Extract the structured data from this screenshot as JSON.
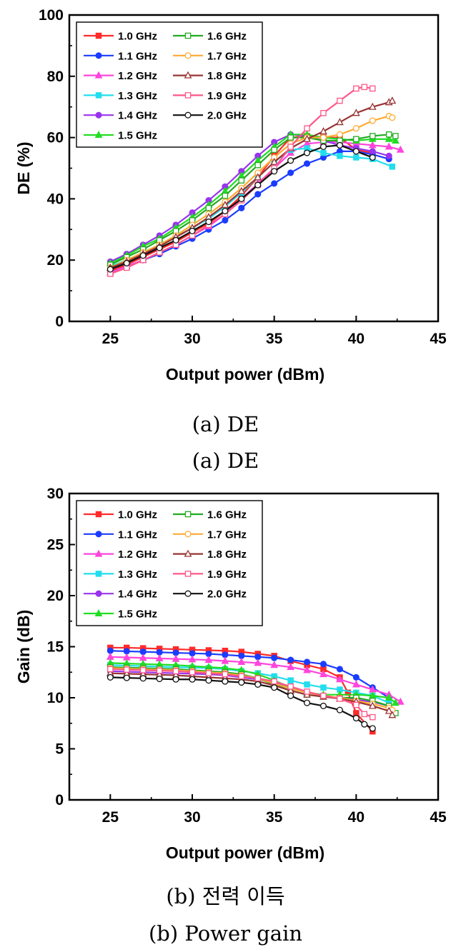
{
  "captions": {
    "a_primary": "(a)  DE",
    "a_secondary": "(a)  DE",
    "b_primary": "(b)  전력 이득",
    "b_secondary": "(b)  Power gain"
  },
  "chart_data": [
    {
      "type": "line",
      "xlabel": "Output power (dBm)",
      "ylabel": "DE (%)",
      "xlim": [
        22.5,
        45
      ],
      "ylim": [
        0,
        100
      ],
      "xticks": [
        25,
        30,
        35,
        40,
        45
      ],
      "yticks": [
        0,
        20,
        40,
        60,
        80,
        100
      ],
      "grid": false,
      "legend_position": "top-left",
      "series": [
        {
          "name": "1.0 GHz",
          "color": "#ff2a2a",
          "marker": "square",
          "filled": true,
          "x": [
            25,
            26,
            27,
            28,
            29,
            30,
            31,
            32,
            33,
            34,
            35,
            36,
            37,
            38,
            39,
            40,
            41
          ],
          "y": [
            16.5,
            18.5,
            21,
            23.5,
            26,
            29,
            32,
            36,
            41,
            47,
            54,
            60,
            60.5,
            60,
            60,
            56,
            55
          ]
        },
        {
          "name": "1.1 GHz",
          "color": "#1a3cff",
          "marker": "circle",
          "filled": true,
          "x": [
            25,
            26,
            27,
            28,
            29,
            30,
            31,
            32,
            33,
            34,
            35,
            36,
            37,
            38,
            39,
            40,
            41,
            42
          ],
          "y": [
            16,
            18,
            20,
            22,
            24.5,
            27,
            30,
            33,
            37,
            41.5,
            45,
            48.5,
            51.5,
            53.5,
            55.5,
            55.5,
            54.5,
            53
          ]
        },
        {
          "name": "1.2 GHz",
          "color": "#ff44dd",
          "marker": "triangle",
          "filled": true,
          "x": [
            25,
            26,
            27,
            28,
            29,
            30,
            31,
            32,
            33,
            34,
            35,
            36,
            37,
            38,
            39,
            40,
            41,
            42,
            42.7
          ],
          "y": [
            16,
            18,
            20,
            22.5,
            25,
            28,
            31,
            35,
            40,
            45,
            50,
            55,
            58,
            58.5,
            58.5,
            58,
            57.5,
            57,
            56
          ]
        },
        {
          "name": "1.3 GHz",
          "color": "#22ddee",
          "marker": "square",
          "filled": true,
          "x": [
            25,
            26,
            27,
            28,
            29,
            30,
            31,
            32,
            33,
            34,
            35,
            36,
            37,
            38,
            39,
            40,
            41,
            42.2
          ],
          "y": [
            18,
            20,
            22.5,
            25,
            27.5,
            30.5,
            33.5,
            37.5,
            42,
            47,
            52,
            56,
            56.5,
            55,
            54,
            53.5,
            53,
            50.5
          ]
        },
        {
          "name": "1.4 GHz",
          "color": "#9933ee",
          "marker": "circle",
          "filled": true,
          "x": [
            25,
            26,
            27,
            28,
            29,
            30,
            31,
            32,
            33,
            34,
            35,
            36,
            37,
            38,
            39,
            40,
            41,
            42
          ],
          "y": [
            19.5,
            22,
            25,
            28,
            31.5,
            35.5,
            39.5,
            44,
            49,
            54,
            58.5,
            61,
            60.5,
            59,
            57.5,
            56.5,
            55.5,
            54
          ]
        },
        {
          "name": "1.5 GHz",
          "color": "#22dd22",
          "marker": "triangle",
          "filled": true,
          "x": [
            25,
            26,
            27,
            28,
            29,
            30,
            31,
            32,
            33,
            34,
            35,
            36,
            37,
            38,
            39,
            40,
            41,
            42,
            42.4
          ],
          "y": [
            19,
            21.5,
            24.5,
            27,
            30.5,
            34,
            38,
            42.5,
            47.5,
            52.5,
            57,
            61,
            61,
            60,
            59.5,
            59,
            59.5,
            59.5,
            59
          ]
        },
        {
          "name": "1.6 GHz",
          "color": "#22aa22",
          "marker": "square",
          "filled": false,
          "x": [
            25,
            26,
            27,
            28,
            29,
            30,
            31,
            32,
            33,
            34,
            35,
            36,
            37,
            38,
            39,
            40,
            41,
            42,
            42.4
          ],
          "y": [
            18.5,
            21,
            23.5,
            26.5,
            29.5,
            33,
            37,
            41,
            46,
            51,
            56,
            60,
            60,
            59,
            59,
            59.5,
            60.5,
            61,
            60.5
          ]
        },
        {
          "name": "1.7 GHz",
          "color": "#ffaa33",
          "marker": "circle",
          "filled": false,
          "x": [
            25,
            26,
            27,
            28,
            29,
            30,
            31,
            32,
            33,
            34,
            35,
            36,
            37,
            38,
            39,
            40,
            41,
            42,
            42.2
          ],
          "y": [
            17.5,
            20,
            22.5,
            25,
            28,
            31.5,
            35,
            39,
            43.5,
            48.5,
            53.5,
            58,
            60,
            60,
            61,
            63,
            65.5,
            67,
            66.5
          ]
        },
        {
          "name": "1.8 GHz",
          "color": "#993333",
          "marker": "triangle",
          "filled": false,
          "x": [
            25,
            26,
            27,
            28,
            29,
            30,
            31,
            32,
            33,
            34,
            35,
            36,
            37,
            38,
            39,
            40,
            41,
            42,
            42.2
          ],
          "y": [
            17.5,
            19.5,
            22,
            24.5,
            27.5,
            30.5,
            34,
            38,
            42.5,
            47,
            52,
            56.5,
            59.5,
            62,
            65,
            68,
            70,
            71.5,
            72
          ]
        },
        {
          "name": "1.9 GHz",
          "color": "#ff5588",
          "marker": "square",
          "filled": false,
          "x": [
            25,
            26,
            27,
            28,
            29,
            30,
            31,
            32,
            33,
            34,
            35,
            36,
            37,
            38,
            39,
            40,
            40.5,
            41
          ],
          "y": [
            15.5,
            17.5,
            20,
            22.5,
            25,
            28,
            31.5,
            35,
            39.5,
            44.5,
            50,
            57,
            63,
            68,
            72,
            76,
            76.5,
            76
          ]
        },
        {
          "name": "2.0 GHz",
          "color": "#111111",
          "marker": "circle",
          "filled": false,
          "x": [
            25,
            26,
            27,
            28,
            29,
            30,
            31,
            32,
            33,
            34,
            35,
            36,
            37,
            38,
            39,
            40,
            41
          ],
          "y": [
            17,
            19,
            21.5,
            24,
            26.5,
            29.5,
            32.5,
            36,
            40,
            44.5,
            49,
            52.5,
            55,
            57,
            57.5,
            55.5,
            53.5
          ]
        }
      ]
    },
    {
      "type": "line",
      "xlabel": "Output power (dBm)",
      "ylabel": "Gain (dB)",
      "xlim": [
        22.5,
        45
      ],
      "ylim": [
        0,
        30
      ],
      "xticks": [
        25,
        30,
        35,
        40,
        45
      ],
      "yticks": [
        0,
        5,
        10,
        15,
        20,
        25,
        30
      ],
      "grid": false,
      "legend_position": "top-left",
      "series": [
        {
          "name": "1.0 GHz",
          "color": "#ff2a2a",
          "marker": "square",
          "filled": true,
          "x": [
            25,
            26,
            27,
            28,
            29,
            30,
            31,
            32,
            33,
            34,
            35,
            36,
            37,
            38,
            39,
            39.5,
            40,
            41
          ],
          "y": [
            14.9,
            14.9,
            14.85,
            14.8,
            14.75,
            14.7,
            14.65,
            14.6,
            14.5,
            14.3,
            14.1,
            13.6,
            13.2,
            12.8,
            12,
            10.5,
            8.5,
            6.7
          ]
        },
        {
          "name": "1.1 GHz",
          "color": "#1a3cff",
          "marker": "circle",
          "filled": true,
          "x": [
            25,
            26,
            27,
            28,
            29,
            30,
            31,
            32,
            33,
            34,
            35,
            36,
            37,
            38,
            39,
            40,
            41,
            42
          ],
          "y": [
            14.6,
            14.55,
            14.5,
            14.45,
            14.4,
            14.35,
            14.3,
            14.2,
            14.1,
            14,
            13.9,
            13.7,
            13.5,
            13.3,
            12.8,
            12,
            11,
            10
          ]
        },
        {
          "name": "1.2 GHz",
          "color": "#ff44dd",
          "marker": "triangle",
          "filled": true,
          "x": [
            25,
            26,
            27,
            28,
            29,
            30,
            31,
            32,
            33,
            34,
            35,
            36,
            37,
            38,
            39,
            40,
            41,
            42,
            42.7
          ],
          "y": [
            14,
            13.95,
            13.9,
            13.85,
            13.8,
            13.75,
            13.7,
            13.6,
            13.5,
            13.4,
            13.2,
            13,
            12.7,
            12.3,
            11.8,
            11.3,
            10.8,
            10.3,
            9.6
          ]
        },
        {
          "name": "1.3 GHz",
          "color": "#22ddee",
          "marker": "square",
          "filled": true,
          "x": [
            25,
            26,
            27,
            28,
            29,
            30,
            31,
            32,
            33,
            34,
            35,
            36,
            37,
            38,
            39,
            40,
            41,
            42
          ],
          "y": [
            13.2,
            13.15,
            13.1,
            13.05,
            13,
            12.95,
            12.9,
            12.8,
            12.6,
            12.4,
            12.1,
            11.7,
            11.3,
            11,
            10.8,
            10.5,
            10.2,
            9.5
          ]
        },
        {
          "name": "1.4 GHz",
          "color": "#9933ee",
          "marker": "circle",
          "filled": true,
          "x": [
            25,
            26,
            27,
            28,
            29,
            30,
            31,
            32,
            33,
            34,
            35,
            36,
            37,
            38,
            39,
            40,
            41,
            42
          ],
          "y": [
            12.6,
            12.55,
            12.5,
            12.45,
            12.4,
            12.35,
            12.3,
            12.2,
            12,
            11.8,
            11.5,
            11,
            10.5,
            10.2,
            10,
            9.8,
            9.6,
            9.2
          ]
        },
        {
          "name": "1.5 GHz",
          "color": "#22dd22",
          "marker": "triangle",
          "filled": true,
          "x": [
            25,
            26,
            27,
            28,
            29,
            30,
            31,
            32,
            33,
            34,
            35,
            36,
            37,
            38,
            39,
            40,
            41,
            42,
            42.4
          ],
          "y": [
            13.4,
            13.35,
            13.3,
            13.25,
            13.2,
            13.1,
            13,
            12.9,
            12.7,
            12.3,
            11.7,
            11,
            10.5,
            10.3,
            10.3,
            10.3,
            10.2,
            10,
            9.5
          ]
        },
        {
          "name": "1.6 GHz",
          "color": "#22aa22",
          "marker": "square",
          "filled": false,
          "x": [
            25,
            26,
            27,
            28,
            29,
            30,
            31,
            32,
            33,
            34,
            35,
            36,
            37,
            38,
            39,
            40,
            41,
            42,
            42.4
          ],
          "y": [
            13,
            12.95,
            12.9,
            12.85,
            12.8,
            12.7,
            12.6,
            12.5,
            12.3,
            11.9,
            11.3,
            10.7,
            10.3,
            10.1,
            10,
            10,
            9.7,
            9.2,
            8.5
          ]
        },
        {
          "name": "1.7 GHz",
          "color": "#ffaa33",
          "marker": "circle",
          "filled": false,
          "x": [
            25,
            26,
            27,
            28,
            29,
            30,
            31,
            32,
            33,
            34,
            35,
            36,
            37,
            38,
            39,
            40,
            41,
            42,
            42.2
          ],
          "y": [
            12.9,
            12.85,
            12.8,
            12.75,
            12.7,
            12.6,
            12.5,
            12.4,
            12.2,
            11.9,
            11.4,
            10.9,
            10.5,
            10.2,
            10,
            9.7,
            9.4,
            9,
            8.8
          ]
        },
        {
          "name": "1.8 GHz",
          "color": "#993333",
          "marker": "triangle",
          "filled": false,
          "x": [
            25,
            26,
            27,
            28,
            29,
            30,
            31,
            32,
            33,
            34,
            35,
            36,
            37,
            38,
            39,
            40,
            41,
            42,
            42.2
          ],
          "y": [
            12.4,
            12.35,
            12.3,
            12.25,
            12.2,
            12.1,
            12,
            11.9,
            11.8,
            11.6,
            11.2,
            10.7,
            10.3,
            10.1,
            9.9,
            9.6,
            9.2,
            8.7,
            8.3
          ]
        },
        {
          "name": "1.9 GHz",
          "color": "#ff5588",
          "marker": "square",
          "filled": false,
          "x": [
            25,
            26,
            27,
            28,
            29,
            30,
            31,
            32,
            33,
            34,
            35,
            36,
            37,
            38,
            39,
            40,
            40.5,
            41
          ],
          "y": [
            12.8,
            12.75,
            12.7,
            12.65,
            12.6,
            12.5,
            12.4,
            12.3,
            12.1,
            11.9,
            11.6,
            11.1,
            10.6,
            10.2,
            9.9,
            9.3,
            8.4,
            8.1
          ]
        },
        {
          "name": "2.0 GHz",
          "color": "#111111",
          "marker": "circle",
          "filled": false,
          "x": [
            25,
            26,
            27,
            28,
            29,
            30,
            31,
            32,
            33,
            34,
            35,
            36,
            37,
            38,
            39,
            40,
            40.5,
            41
          ],
          "y": [
            12,
            11.95,
            11.9,
            11.85,
            11.8,
            11.8,
            11.7,
            11.6,
            11.5,
            11.3,
            11,
            10.2,
            9.5,
            9.2,
            8.8,
            8,
            7.4,
            7
          ]
        }
      ]
    }
  ]
}
